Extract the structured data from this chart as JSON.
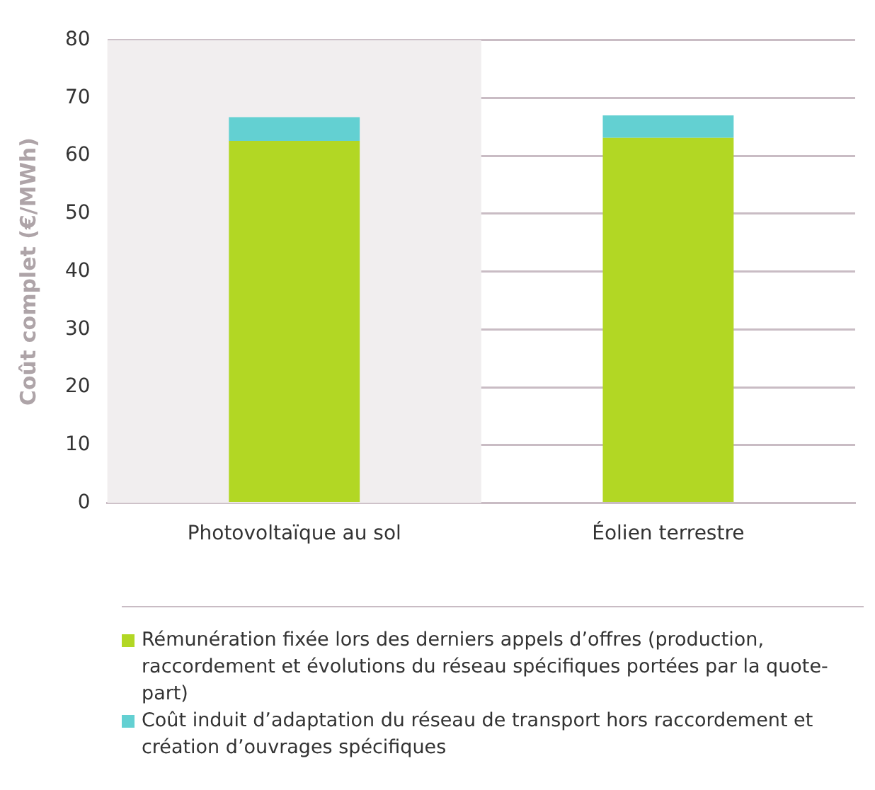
{
  "chart_data": {
    "type": "bar",
    "stacked": true,
    "ylabel": "Coût complet (€/MWh)",
    "categories": [
      "Photovoltaïque au sol",
      "Éolien terrestre"
    ],
    "series": [
      {
        "name": "Rémunération fixée lors des derniers appels d’offres (production, raccordement et évolutions du réseau spécifiques portées par la quote-part)",
        "color": "#b2d724",
        "values": [
          62.6,
          63.1
        ]
      },
      {
        "name": "Coût induit d’adaptation du réseau de transport hors raccordement et création d’ouvrages spécifiques",
        "color": "#63d0d2",
        "values": [
          4.1,
          3.9
        ]
      }
    ],
    "ylim": [
      0,
      80
    ],
    "yticks": [
      0,
      10,
      20,
      30,
      40,
      50,
      60,
      70,
      80
    ],
    "grid": "y",
    "legend": "bottom",
    "bands": [
      {
        "axis": "x",
        "from": "Photovoltaïque au sol",
        "to": "Photovoltaïque au sol",
        "color": "#f1eeef"
      }
    ]
  }
}
